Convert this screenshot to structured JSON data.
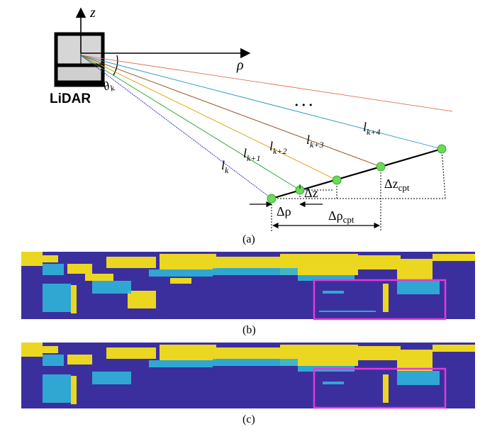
{
  "diagram": {
    "sensor_label": "LiDAR",
    "axis_z": "z",
    "axis_rho": "ρ",
    "angle_label": "θ",
    "angle_sub": "k",
    "ellipsis": "• • •",
    "beams": [
      {
        "base": "l",
        "sub": "k",
        "color": "#2222cc"
      },
      {
        "base": "l",
        "sub": "k+1",
        "color": "#2aa52a"
      },
      {
        "base": "l",
        "sub": "k+2",
        "color": "#d4a000"
      },
      {
        "base": "l",
        "sub": "k+3",
        "color": "#8b4513"
      },
      {
        "base": "l",
        "sub": "k+4",
        "color": "#1e90c8"
      }
    ],
    "top_beam_color": "#e07050",
    "point_color": "#66dd55",
    "delta_rho": "Δρ",
    "delta_rho_cpt": "Δρ",
    "delta_rho_cpt_sub": "cpt",
    "delta_z": "Δz",
    "delta_z_cpt": "Δz",
    "delta_z_cpt_sub": "cpt",
    "caption": "(a)"
  },
  "panel_b": {
    "caption": "(b)"
  },
  "panel_c": {
    "caption": "(c)"
  },
  "colors": {
    "background_map": "#3b2f9e",
    "feature_yellow": "#f5e11a",
    "feature_cyan": "#2fb4d8",
    "highlight_box": "#e23ad8"
  }
}
